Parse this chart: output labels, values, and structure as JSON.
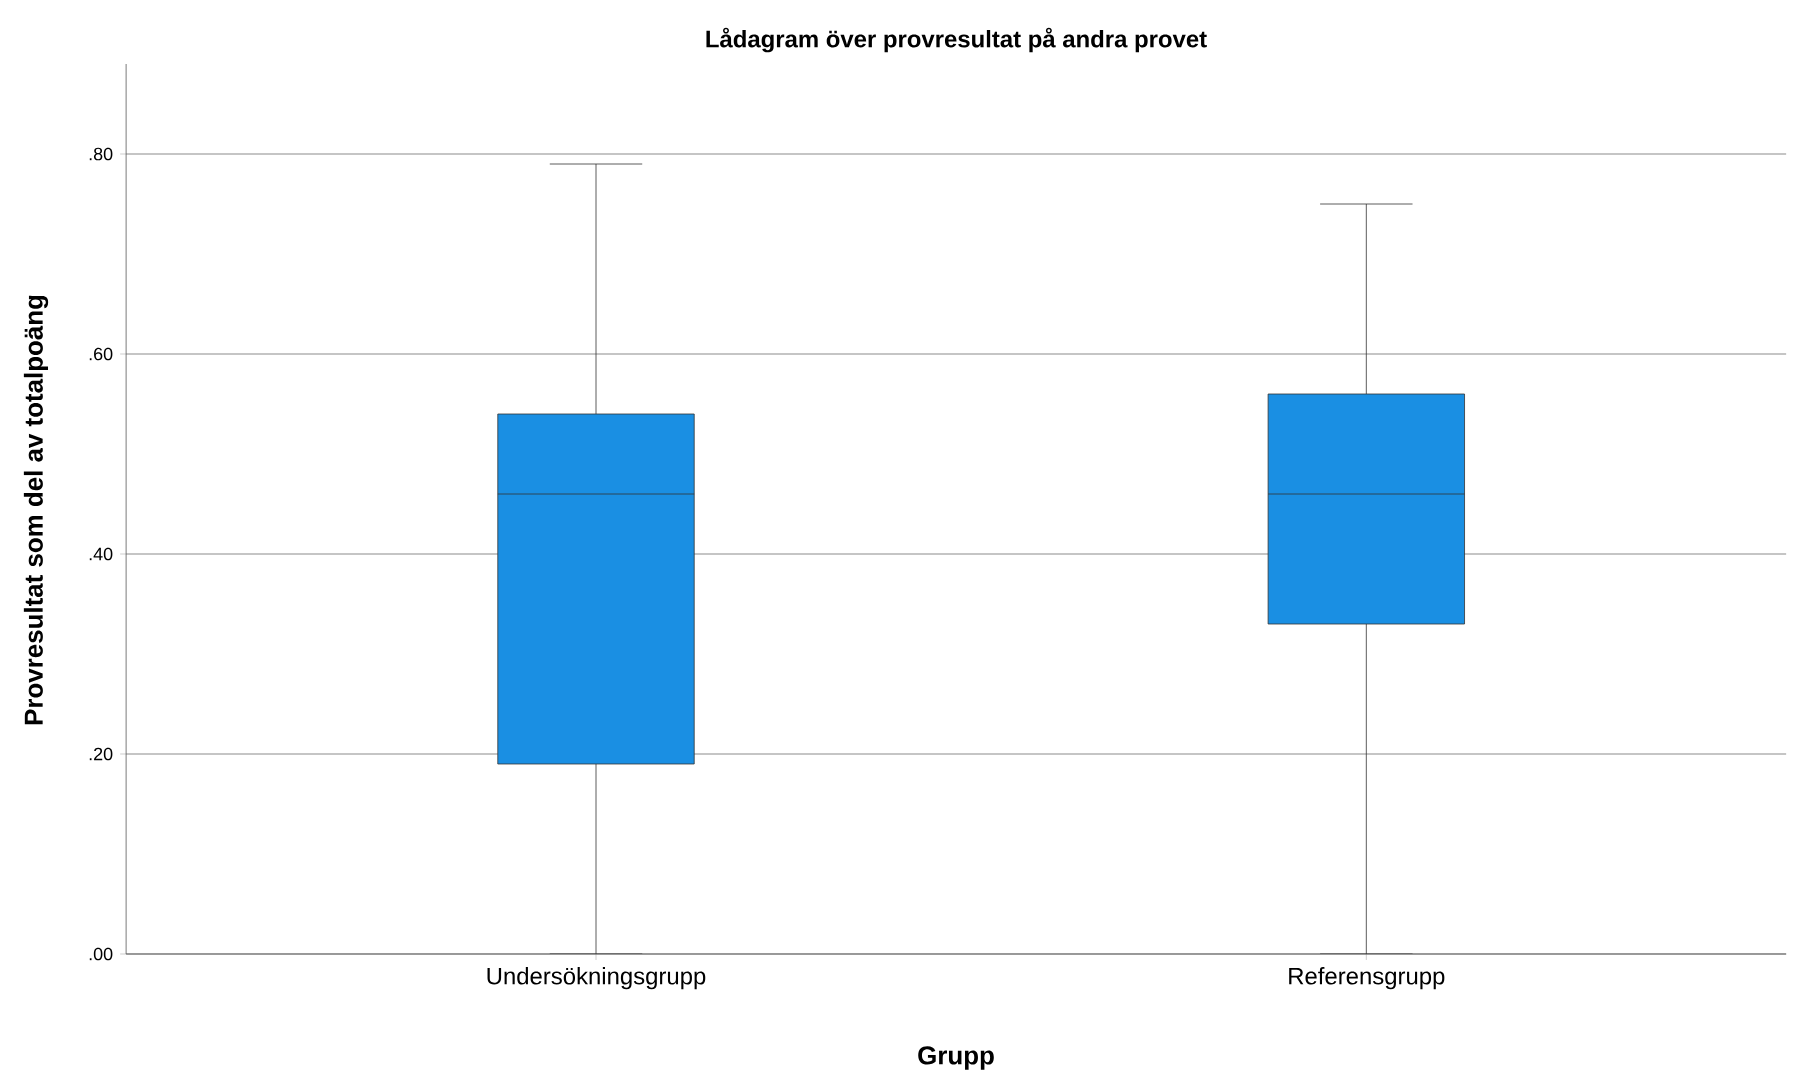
{
  "chart_data": {
    "type": "box",
    "title": "Lådagram över provresultat på andra provet",
    "xlabel": "Grupp",
    "ylabel": "Provresultat som del av totalpoäng",
    "categories": [
      "Undersökningsgrupp",
      "Referensgrupp"
    ],
    "color": "#1a8fe3",
    "boxes": [
      {
        "low": 0,
        "q1": 0.19,
        "median": 0.46,
        "q3": 0.54,
        "high": 0.79
      },
      {
        "low": 0,
        "q1": 0.33,
        "median": 0.46,
        "q3": 0.56,
        "high": 0.75
      }
    ],
    "ylim": [
      0,
      0.89
    ],
    "yticks": [
      {
        "value": 0,
        "label": ".00"
      },
      {
        "value": 0.2,
        "label": ".20"
      },
      {
        "value": 0.4,
        "label": ".40"
      },
      {
        "value": 0.6,
        "label": ".60"
      },
      {
        "value": 0.8,
        "label": ".80"
      }
    ],
    "grid": "y"
  }
}
